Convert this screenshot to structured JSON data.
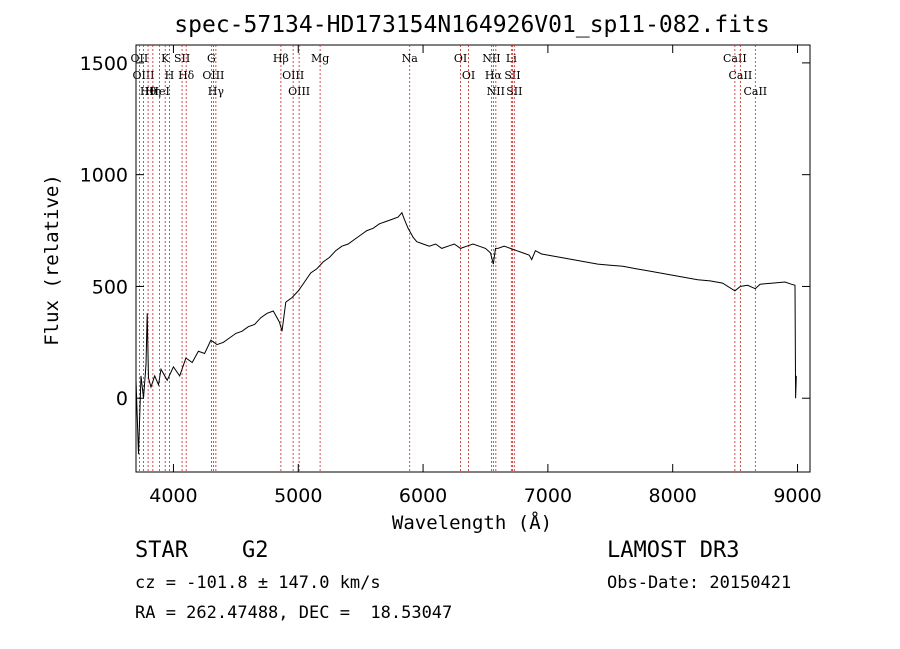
{
  "chart_data": {
    "type": "line",
    "title": "spec-57134-HD173154N164926V01_sp11-082.fits",
    "xlabel": "Wavelength (Å)",
    "ylabel": "Flux (relative)",
    "xlim": [
      3700,
      9100
    ],
    "ylim": [
      -330,
      1580
    ],
    "xticks": [
      4000,
      5000,
      6000,
      7000,
      8000,
      9000
    ],
    "yticks": [
      0,
      500,
      1000,
      1500
    ],
    "line_color": "#000000",
    "marker_color": "#cc2222",
    "series": [
      {
        "name": "flux",
        "x": [
          3700,
          3720,
          3740,
          3760,
          3780,
          3790,
          3800,
          3820,
          3850,
          3880,
          3900,
          3950,
          4000,
          4050,
          4100,
          4150,
          4200,
          4250,
          4300,
          4350,
          4400,
          4450,
          4500,
          4550,
          4600,
          4650,
          4700,
          4750,
          4800,
          4850,
          4870,
          4900,
          4950,
          5000,
          5050,
          5100,
          5150,
          5200,
          5250,
          5300,
          5350,
          5400,
          5450,
          5500,
          5550,
          5600,
          5650,
          5700,
          5750,
          5800,
          5830,
          5850,
          5880,
          5900,
          5920,
          5950,
          6000,
          6050,
          6100,
          6150,
          6200,
          6250,
          6300,
          6350,
          6400,
          6450,
          6500,
          6540,
          6563,
          6580,
          6600,
          6650,
          6700,
          6750,
          6800,
          6850,
          6870,
          6900,
          6950,
          7000,
          7100,
          7200,
          7300,
          7400,
          7500,
          7600,
          7700,
          7800,
          7900,
          8000,
          8100,
          8200,
          8300,
          8400,
          8498,
          8542,
          8600,
          8662,
          8700,
          8800,
          8900,
          8950,
          8980,
          8985,
          8990
        ],
        "y": [
          80,
          -250,
          100,
          0,
          150,
          380,
          90,
          50,
          100,
          60,
          130,
          80,
          140,
          100,
          180,
          160,
          210,
          200,
          260,
          240,
          250,
          270,
          290,
          300,
          320,
          330,
          360,
          380,
          390,
          340,
          300,
          430,
          450,
          480,
          520,
          560,
          580,
          610,
          630,
          660,
          680,
          690,
          710,
          730,
          750,
          760,
          780,
          790,
          800,
          810,
          830,
          800,
          760,
          740,
          720,
          700,
          690,
          680,
          690,
          670,
          680,
          690,
          670,
          680,
          690,
          680,
          670,
          650,
          600,
          670,
          670,
          680,
          670,
          660,
          650,
          640,
          620,
          660,
          645,
          640,
          630,
          620,
          610,
          600,
          595,
          590,
          580,
          570,
          560,
          550,
          540,
          530,
          525,
          515,
          480,
          500,
          505,
          490,
          510,
          515,
          520,
          510,
          505,
          0,
          100
        ]
      }
    ],
    "lines": [
      {
        "label": "Hθ",
        "x": 3797
      },
      {
        "label": "OII",
        "x": 3727
      },
      {
        "label": "OIII",
        "x": 3760
      },
      {
        "label": "Hη",
        "x": 3835
      },
      {
        "label": "HeI",
        "x": 3889
      },
      {
        "label": "K",
        "x": 3934
      },
      {
        "label": "H",
        "x": 3968
      },
      {
        "label": "SII",
        "x": 4069
      },
      {
        "label": "Hδ",
        "x": 4102
      },
      {
        "label": "OIII",
        "x": 4320
      },
      {
        "label": "Hγ",
        "x": 4340
      },
      {
        "label": "G",
        "x": 4304
      },
      {
        "label": "Hβ",
        "x": 4861
      },
      {
        "label": "OIII",
        "x": 4959
      },
      {
        "label": "OIII",
        "x": 5007
      },
      {
        "label": "Mg",
        "x": 5175
      },
      {
        "label": "Na",
        "x": 5893
      },
      {
        "label": "OI",
        "x": 6300
      },
      {
        "label": "OI",
        "x": 6364
      },
      {
        "label": "Hα",
        "x": 6563
      },
      {
        "label": "NII",
        "x": 6548
      },
      {
        "label": "NII",
        "x": 6583
      },
      {
        "label": "SII",
        "x": 6716
      },
      {
        "label": "Li",
        "x": 6707
      },
      {
        "label": "SII",
        "x": 6731
      },
      {
        "label": "CaII",
        "x": 8498
      },
      {
        "label": "CaII",
        "x": 8542
      },
      {
        "label": "CaII",
        "x": 8662
      }
    ]
  },
  "info": {
    "object_class": "STAR",
    "subclass": "G2",
    "survey": "LAMOST DR3",
    "cz": "cz = -101.8 ± 147.0 km/s",
    "obs_date": "Obs-Date: 20150421",
    "radec": "RA = 262.47488, DEC =  18.53047"
  }
}
